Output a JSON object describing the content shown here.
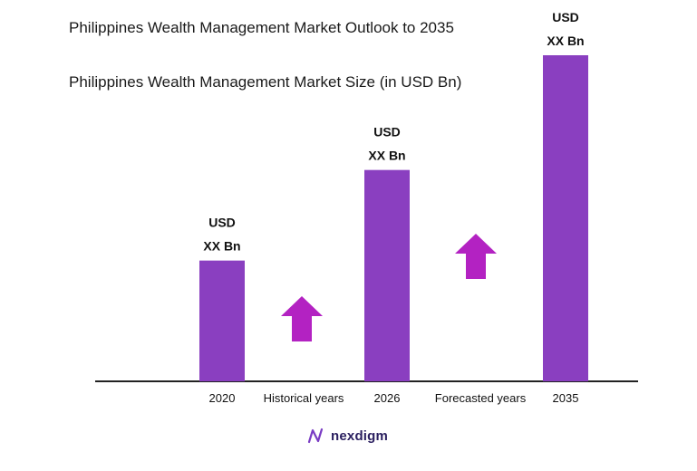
{
  "title": "Philippines Wealth Management Market Outlook to 2035",
  "brand": {
    "name": "nexdigm",
    "logo_icon": "nexdigm-logo-icon"
  },
  "colors": {
    "bar": "#8a3fc0",
    "arrow": "#b322c2",
    "axis": "#222222"
  },
  "chart_data": {
    "type": "bar",
    "title": "Philippines Wealth Management Market Size (in USD Bn)",
    "categories": [
      "2020",
      "2026",
      "2035"
    ],
    "values": [
      1.0,
      1.75,
      2.7
    ],
    "value_labels": [
      [
        "USD",
        "XX Bn"
      ],
      [
        "USD",
        "XX Bn"
      ],
      [
        "USD",
        "XX Bn"
      ]
    ],
    "period_labels": [
      "Historical years",
      "Forecasted years"
    ],
    "ylim": [
      0,
      3.0
    ],
    "grid": false,
    "legend": "none"
  }
}
